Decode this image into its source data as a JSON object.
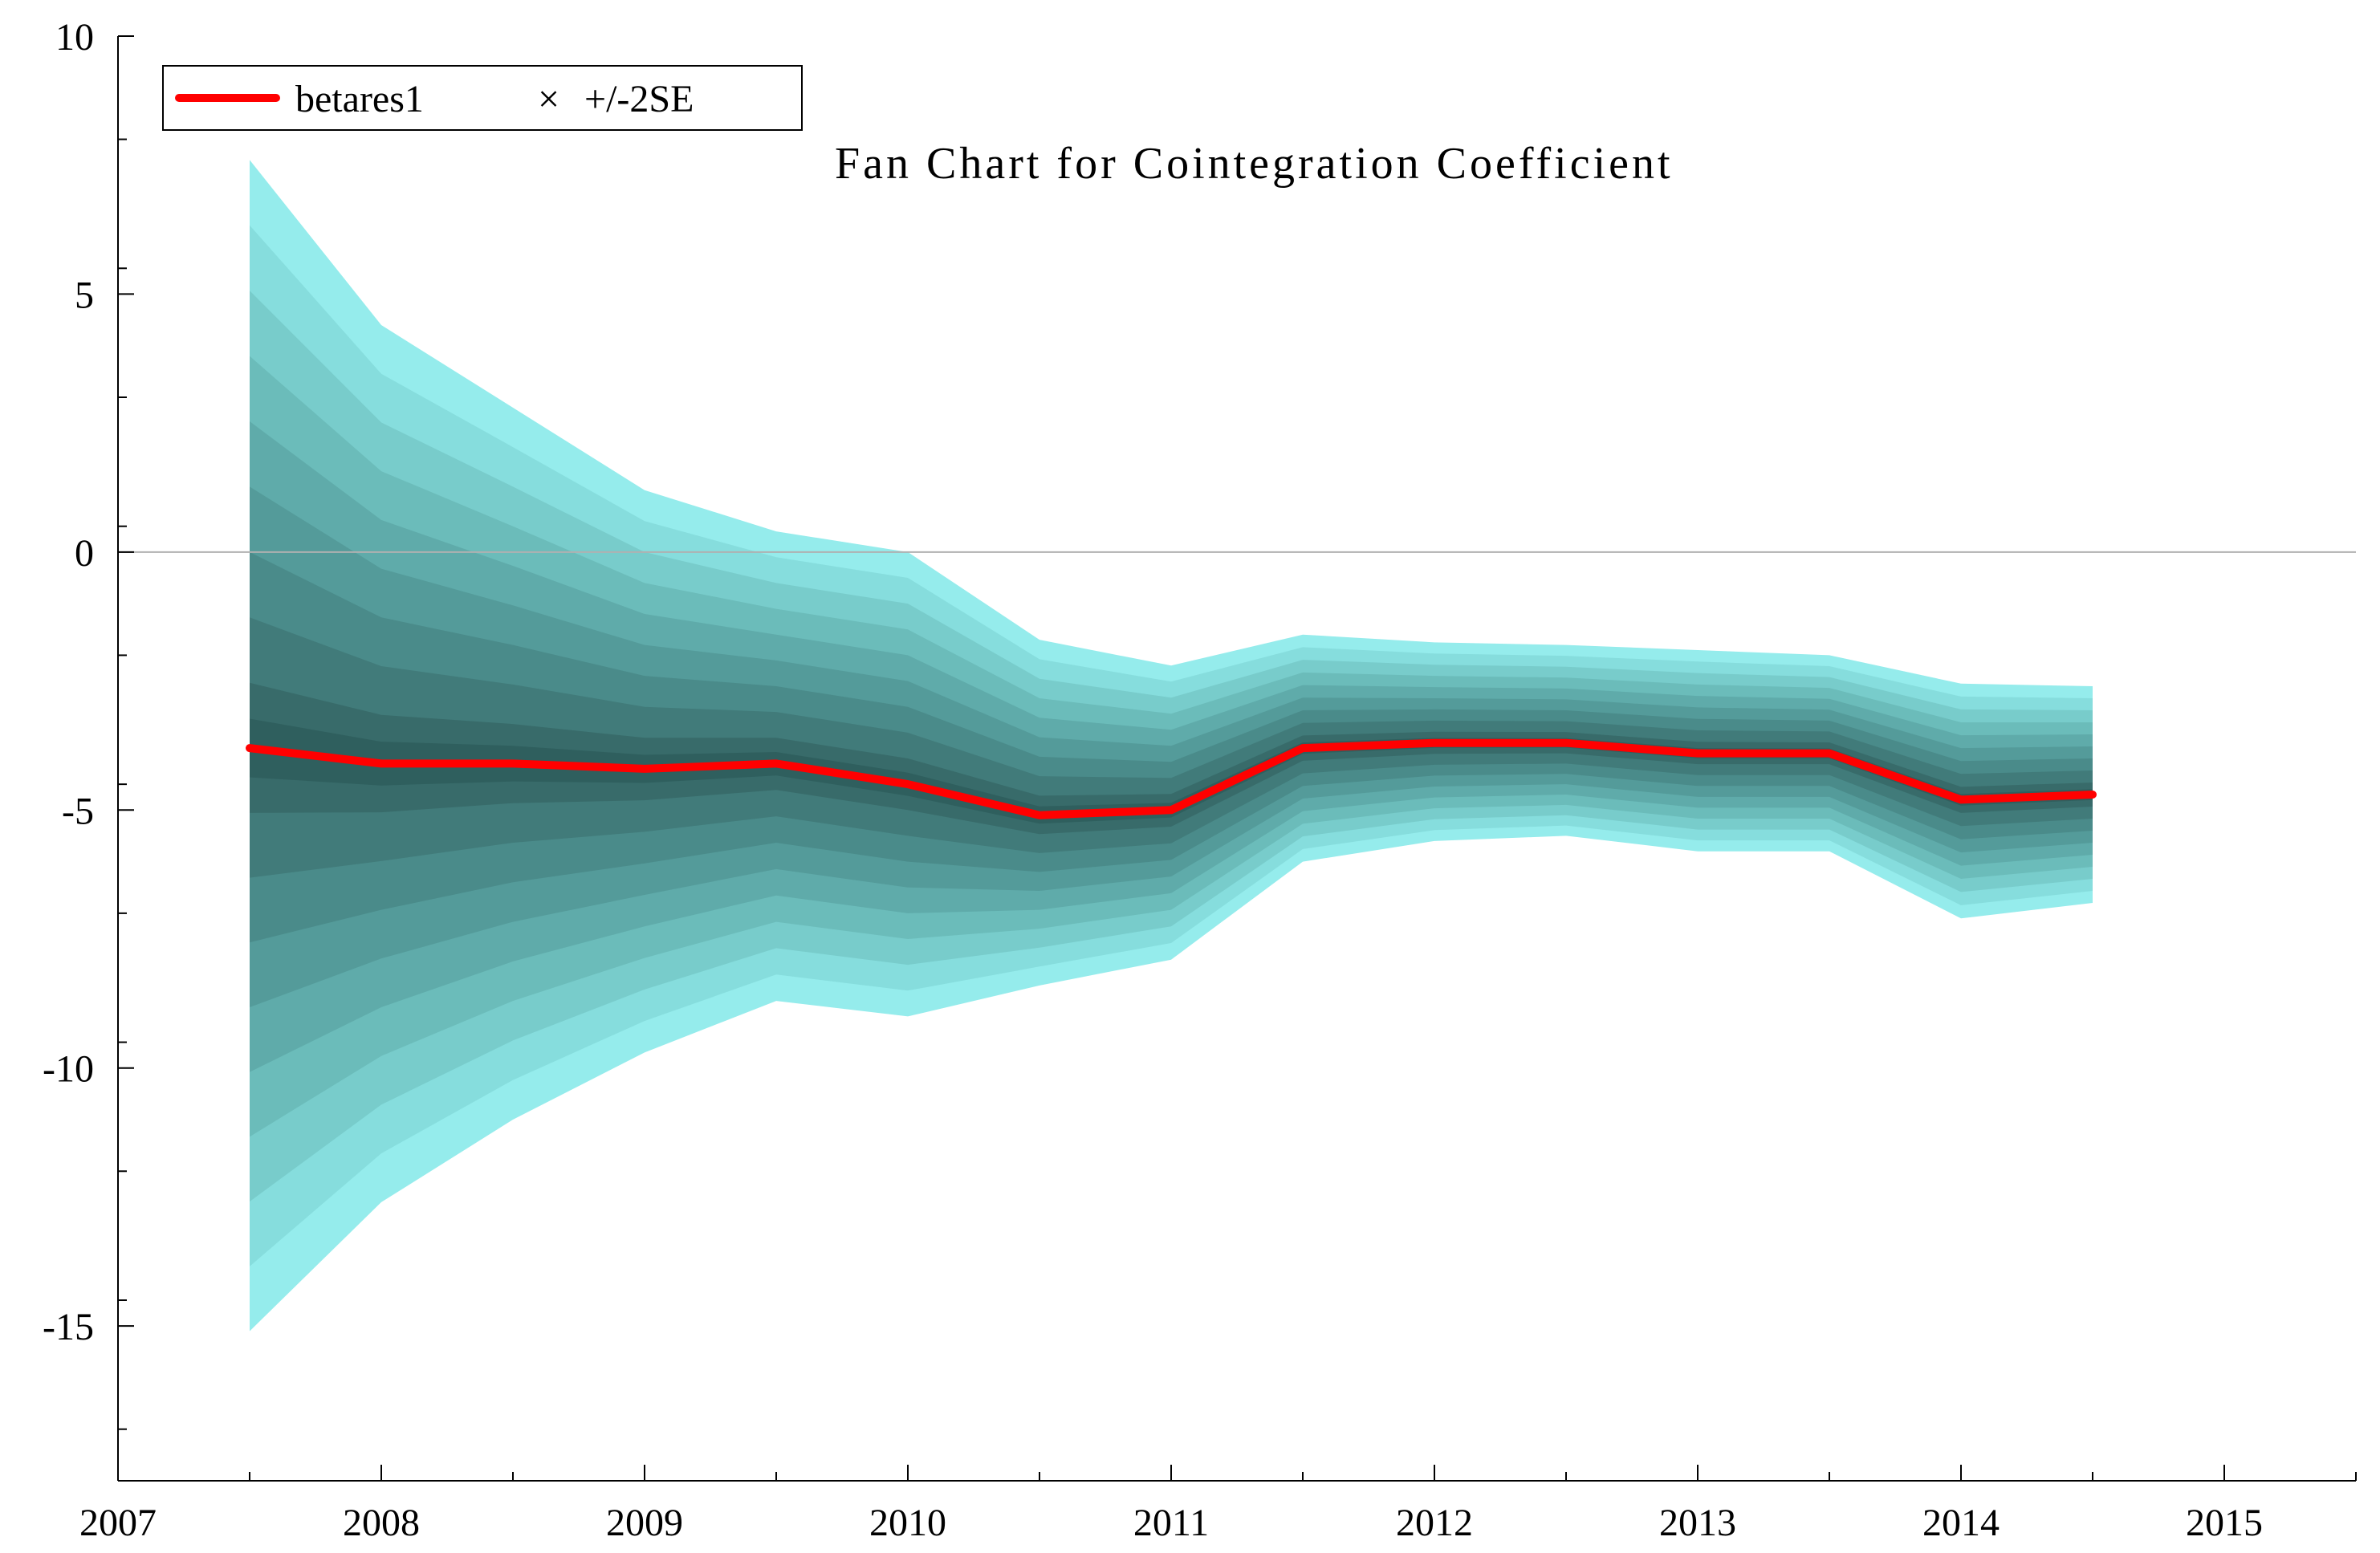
{
  "chart_data": {
    "type": "area",
    "title": "Fan Chart for Cointegration Coefficient",
    "xlabel": "",
    "ylabel": "",
    "xlim": [
      2007,
      2015.5
    ],
    "ylim": [
      -18,
      10
    ],
    "x_ticks": [
      {
        "value": 2007,
        "label": "2007"
      },
      {
        "value": 2008,
        "label": "2008"
      },
      {
        "value": 2009,
        "label": "2009"
      },
      {
        "value": 2010,
        "label": "2010"
      },
      {
        "value": 2011,
        "label": "2011"
      },
      {
        "value": 2012,
        "label": "2012"
      },
      {
        "value": 2013,
        "label": "2013"
      },
      {
        "value": 2014,
        "label": "2014"
      },
      {
        "value": 2015,
        "label": "2015"
      }
    ],
    "y_ticks": [
      {
        "value": 10,
        "label": "10"
      },
      {
        "value": 5,
        "label": "5"
      },
      {
        "value": 0,
        "label": "0"
      },
      {
        "value": -5,
        "label": "-5"
      },
      {
        "value": -10,
        "label": "-10"
      },
      {
        "value": -15,
        "label": "-15"
      }
    ],
    "zero_line": true,
    "legend": {
      "placement": "top-left",
      "entries": [
        {
          "label": "betares1",
          "marker": "line",
          "color": "#ff0000"
        },
        {
          "label": "+/-2SE",
          "marker": "×",
          "color": "#000000"
        }
      ]
    },
    "x": [
      2007.5,
      2008.0,
      2008.5,
      2009.0,
      2009.5,
      2010.0,
      2010.5,
      2011.0,
      2011.5,
      2012.0,
      2012.5,
      2013.0,
      2013.5,
      2014.0,
      2014.5
    ],
    "series": [
      {
        "name": "betares1",
        "color": "#ff0000",
        "values": [
          -3.8,
          -4.1,
          -4.1,
          -4.2,
          -4.1,
          -4.5,
          -5.1,
          -5.0,
          -3.8,
          -3.7,
          -3.7,
          -3.9,
          -3.9,
          -4.8,
          -4.7
        ]
      },
      {
        "name": "+/-2SE upper",
        "values": [
          7.6,
          4.4,
          2.8,
          1.2,
          0.4,
          0.0,
          -1.7,
          -2.2,
          -1.6,
          -1.75,
          -1.8,
          -1.9,
          -2.0,
          -2.55,
          -2.6
        ]
      },
      {
        "name": "+/-2SE lower",
        "values": [
          -15.1,
          -12.6,
          -11.0,
          -9.7,
          -8.7,
          -9.0,
          -8.4,
          -7.9,
          -6.0,
          -5.6,
          -5.5,
          -5.8,
          -5.8,
          -7.1,
          -6.8
        ]
      }
    ],
    "fan_bands": 9,
    "fan_colors": [
      "#95ecec",
      "#86dddd",
      "#78cccb",
      "#6bbcba",
      "#5fabaa",
      "#549b9a",
      "#4a8b8a",
      "#417b7a",
      "#386b6a",
      "#2f5f5e"
    ]
  }
}
